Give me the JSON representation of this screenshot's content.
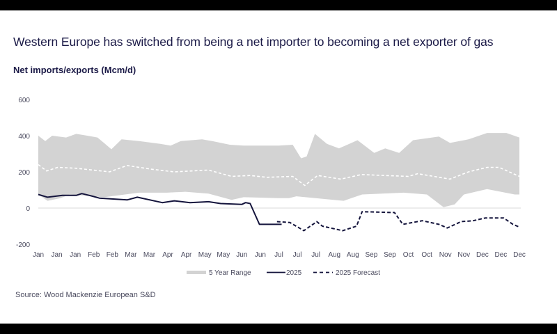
{
  "chart_data": {
    "type": "line",
    "title": "Western Europe has switched from being a net importer to becoming a net exporter of gas",
    "ylabel": "Net imports/exports (Mcm/d)",
    "xlabel": "",
    "source": "Source: Wood Mackenzie European S&D",
    "ylim": [
      -200,
      600
    ],
    "yticks": [
      600,
      400,
      200,
      0,
      -200
    ],
    "xlim": [
      0,
      52
    ],
    "x_unit": "week",
    "xtick_labels": [
      "Jan",
      "Jan",
      "Jan",
      "Feb",
      "Feb",
      "Mar",
      "Mar",
      "Apr",
      "Apr",
      "May",
      "May",
      "Jun",
      "Jun",
      "Jul",
      "Jul",
      "Jul",
      "Aug",
      "Aug",
      "Sep",
      "Sep",
      "Oct",
      "Oct",
      "Nov",
      "Nov",
      "Dec",
      "Dec",
      "Dec"
    ],
    "grid": false,
    "legend_position": "bottom",
    "legend": [
      "5 Year Range",
      "2025",
      "2025 Forecast"
    ],
    "range": {
      "name": "5 Year Range",
      "color": "#d3d3d3",
      "upper": [
        [
          0,
          400
        ],
        [
          0.75,
          370
        ],
        [
          1.5,
          400
        ],
        [
          3,
          390
        ],
        [
          4.1,
          410
        ],
        [
          5.3,
          400
        ],
        [
          6.4,
          390
        ],
        [
          7.1,
          360
        ],
        [
          7.9,
          325
        ],
        [
          9,
          380
        ],
        [
          10.9,
          370
        ],
        [
          13.2,
          355
        ],
        [
          14.3,
          345
        ],
        [
          15.4,
          370
        ],
        [
          17.7,
          380
        ],
        [
          18.8,
          370
        ],
        [
          20.7,
          350
        ],
        [
          22.2,
          345
        ],
        [
          26,
          345
        ],
        [
          27.5,
          350
        ],
        [
          28.4,
          275
        ],
        [
          29,
          285
        ],
        [
          29.9,
          410
        ],
        [
          31.2,
          355
        ],
        [
          32.5,
          330
        ],
        [
          34.5,
          375
        ],
        [
          36.3,
          305
        ],
        [
          37.5,
          330
        ],
        [
          39,
          305
        ],
        [
          40.5,
          375
        ],
        [
          43.3,
          395
        ],
        [
          44.5,
          360
        ],
        [
          46.5,
          380
        ],
        [
          48.5,
          415
        ],
        [
          50.6,
          415
        ],
        [
          52,
          390
        ]
      ],
      "lower": [
        [
          0,
          75
        ],
        [
          1,
          40
        ],
        [
          2.4,
          55
        ],
        [
          3.4,
          75
        ],
        [
          7.1,
          60
        ],
        [
          10.9,
          85
        ],
        [
          13.9,
          85
        ],
        [
          15.9,
          90
        ],
        [
          18.4,
          80
        ],
        [
          20.9,
          45
        ],
        [
          22.2,
          60
        ],
        [
          25.9,
          55
        ],
        [
          27.1,
          55
        ],
        [
          27.9,
          65
        ],
        [
          33,
          40
        ],
        [
          35,
          75
        ],
        [
          39.5,
          85
        ],
        [
          42,
          75
        ],
        [
          43.8,
          5
        ],
        [
          45,
          20
        ],
        [
          46,
          75
        ],
        [
          48.5,
          105
        ],
        [
          51.5,
          75
        ],
        [
          52,
          75
        ]
      ]
    },
    "series": [
      {
        "name": "5 year average",
        "color": "#ffffff",
        "style": "dashed",
        "points": [
          [
            0,
            240
          ],
          [
            0.9,
            205
          ],
          [
            2.1,
            225
          ],
          [
            4.1,
            220
          ],
          [
            7.7,
            200
          ],
          [
            9.6,
            235
          ],
          [
            12.2,
            215
          ],
          [
            14.7,
            200
          ],
          [
            18.4,
            210
          ],
          [
            20.9,
            175
          ],
          [
            22.9,
            180
          ],
          [
            24.7,
            170
          ],
          [
            27.5,
            175
          ],
          [
            28.8,
            125
          ],
          [
            30.2,
            180
          ],
          [
            32.7,
            160
          ],
          [
            34.9,
            185
          ],
          [
            40,
            175
          ],
          [
            41,
            190
          ],
          [
            44.5,
            160
          ],
          [
            46.5,
            200
          ],
          [
            48.5,
            225
          ],
          [
            49.8,
            225
          ],
          [
            52,
            175
          ]
        ]
      },
      {
        "name": "2025",
        "color": "#14143c",
        "style": "solid",
        "points": [
          [
            0,
            75
          ],
          [
            1,
            60
          ],
          [
            2.6,
            70
          ],
          [
            4.1,
            70
          ],
          [
            4.7,
            80
          ],
          [
            5.9,
            65
          ],
          [
            6.6,
            55
          ],
          [
            9.6,
            45
          ],
          [
            10.7,
            60
          ],
          [
            13.4,
            30
          ],
          [
            14.7,
            40
          ],
          [
            16.4,
            30
          ],
          [
            18.4,
            35
          ],
          [
            19.7,
            25
          ],
          [
            22,
            20
          ],
          [
            22.4,
            30
          ],
          [
            22.9,
            25
          ],
          [
            23.9,
            -90
          ],
          [
            26.3,
            -90
          ]
        ]
      },
      {
        "name": "2025 Forecast",
        "color": "#14143c",
        "style": "dashed",
        "points": [
          [
            25.8,
            -75
          ],
          [
            27.2,
            -80
          ],
          [
            28.7,
            -125
          ],
          [
            30.1,
            -75
          ],
          [
            30.7,
            -100
          ],
          [
            32.9,
            -125
          ],
          [
            34.4,
            -100
          ],
          [
            35,
            -20
          ],
          [
            38.5,
            -25
          ],
          [
            39.4,
            -90
          ],
          [
            41.5,
            -70
          ],
          [
            43.3,
            -90
          ],
          [
            44.2,
            -110
          ],
          [
            45.7,
            -75
          ],
          [
            47,
            -70
          ],
          [
            48.3,
            -55
          ],
          [
            50.3,
            -55
          ],
          [
            51.3,
            -90
          ],
          [
            52,
            -105
          ]
        ]
      }
    ]
  }
}
